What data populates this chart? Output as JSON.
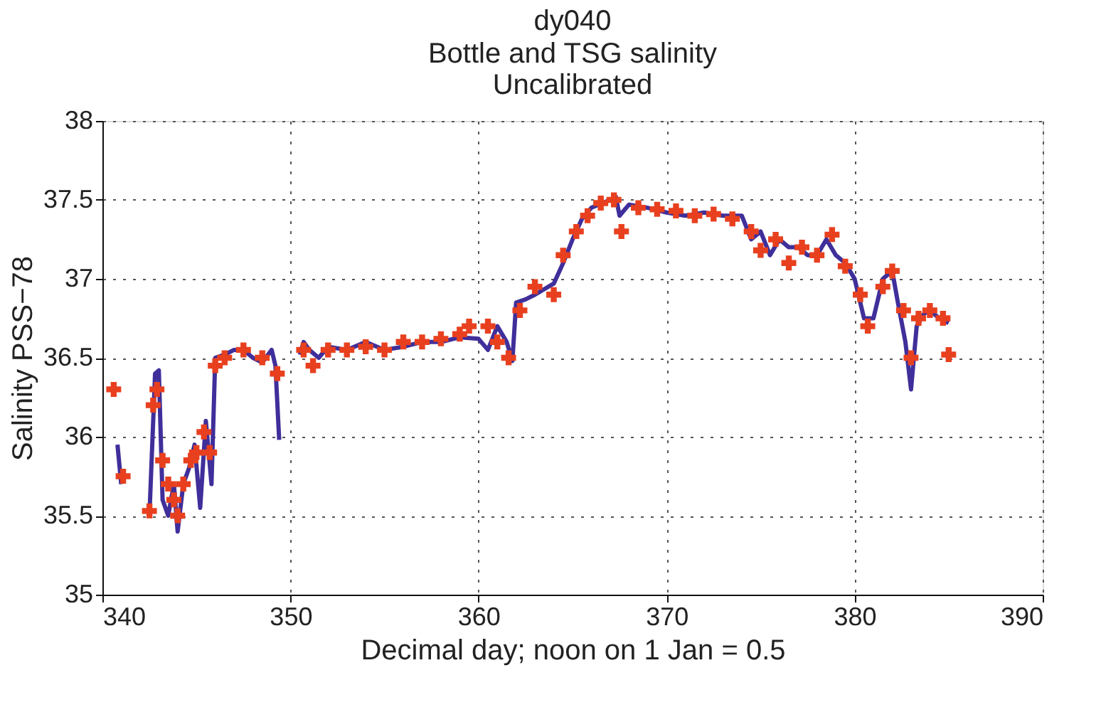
{
  "chart_data": {
    "type": "line",
    "title": "dy040",
    "subtitle": "Bottle and TSG salinity\nUncalibrated",
    "xlabel": "Decimal day; noon on 1 Jan = 0.5",
    "ylabel": "Salinity PSS−78",
    "xlim": [
      340,
      390
    ],
    "xticks": [
      340,
      350,
      360,
      370,
      380,
      390
    ],
    "ylim": [
      35,
      38
    ],
    "yticks": [
      35,
      35.5,
      36,
      36.5,
      37,
      37.5,
      38
    ],
    "grid": true,
    "line_style": "solid",
    "series": [
      {
        "color": "#3f2f9a",
        "x": [
          340.8,
          341.0,
          341.5,
          342.5,
          342.8,
          343.0,
          343.2,
          343.5,
          343.8,
          344.0,
          344.3,
          344.6,
          344.9,
          345.2,
          345.5,
          345.8,
          346.0,
          346.5,
          347.0,
          347.5,
          348.0,
          348.5,
          349.0,
          349.2,
          349.4,
          349.9,
          350.5,
          350.7,
          351,
          351.5,
          352,
          353,
          354,
          355,
          356,
          357,
          358,
          359,
          360,
          360.5,
          361,
          361.5,
          361.8,
          362.0,
          362.5,
          363,
          364,
          364.5,
          365,
          365.5,
          366,
          367,
          367.3,
          367.5,
          368,
          369,
          370,
          371,
          372,
          373,
          374,
          374.5,
          375,
          375.5,
          376,
          376.5,
          377,
          377.5,
          378,
          378.5,
          379,
          379.5,
          380,
          380.5,
          381,
          381.5,
          382,
          382.3,
          382.7,
          383,
          383.3,
          383.7,
          384,
          384.5,
          385
        ],
        "values": [
          35.95,
          35.7,
          null,
          35.5,
          36.4,
          36.42,
          35.6,
          35.5,
          35.7,
          35.4,
          35.7,
          35.8,
          35.95,
          35.55,
          36.1,
          35.7,
          36.5,
          36.52,
          36.55,
          36.55,
          36.5,
          36.47,
          36.55,
          36.45,
          35.98,
          null,
          36.52,
          36.6,
          36.55,
          36.5,
          36.57,
          36.55,
          36.6,
          36.55,
          36.57,
          36.6,
          36.6,
          36.63,
          36.62,
          36.55,
          36.7,
          36.6,
          36.48,
          36.85,
          36.87,
          36.9,
          36.97,
          37.1,
          37.25,
          37.38,
          37.45,
          37.5,
          37.52,
          37.4,
          37.47,
          37.45,
          37.42,
          37.4,
          37.42,
          37.4,
          37.4,
          37.25,
          37.3,
          37.15,
          37.25,
          37.2,
          37.2,
          37.15,
          37.15,
          37.25,
          37.15,
          37.1,
          37.0,
          36.75,
          36.75,
          37.0,
          37.05,
          36.85,
          36.6,
          36.3,
          36.7,
          36.78,
          36.8,
          36.75,
          36.72
        ]
      },
      {
        "type": "scatter",
        "color": "#e8401f",
        "marker": "cross",
        "x": [
          340.6,
          341.1,
          342.5,
          342.7,
          342.9,
          343.2,
          343.5,
          343.8,
          344.0,
          344.3,
          344.7,
          345.0,
          345.4,
          345.7,
          346.0,
          346.5,
          347.5,
          348.5,
          349.3,
          350.7,
          351.2,
          352,
          353,
          354,
          355,
          356,
          357,
          358,
          359,
          359.5,
          360.5,
          361,
          361.6,
          362.2,
          363,
          364,
          364.5,
          365.2,
          365.8,
          366.5,
          367.2,
          367.6,
          368.5,
          369.5,
          370.5,
          371.5,
          372.5,
          373.5,
          374.5,
          375,
          375.8,
          376.5,
          377.2,
          378,
          378.8,
          379.5,
          380.3,
          380.7,
          381.5,
          382,
          382.6,
          383,
          383.4,
          384,
          384.7,
          385
        ],
        "values": [
          36.3,
          35.75,
          35.53,
          36.2,
          36.3,
          35.85,
          35.7,
          35.6,
          35.5,
          35.7,
          35.85,
          35.9,
          36.03,
          35.9,
          36.45,
          36.5,
          36.55,
          36.5,
          36.4,
          36.55,
          36.45,
          36.55,
          36.55,
          36.57,
          36.55,
          36.6,
          36.6,
          36.62,
          36.65,
          36.7,
          36.7,
          36.6,
          36.5,
          36.8,
          36.95,
          36.9,
          37.15,
          37.3,
          37.4,
          37.48,
          37.5,
          37.3,
          37.45,
          37.44,
          37.43,
          37.4,
          37.41,
          37.38,
          37.3,
          37.18,
          37.25,
          37.1,
          37.2,
          37.15,
          37.28,
          37.08,
          36.9,
          36.7,
          36.95,
          37.05,
          36.8,
          36.5,
          36.75,
          36.8,
          36.75,
          36.52
        ]
      }
    ]
  }
}
